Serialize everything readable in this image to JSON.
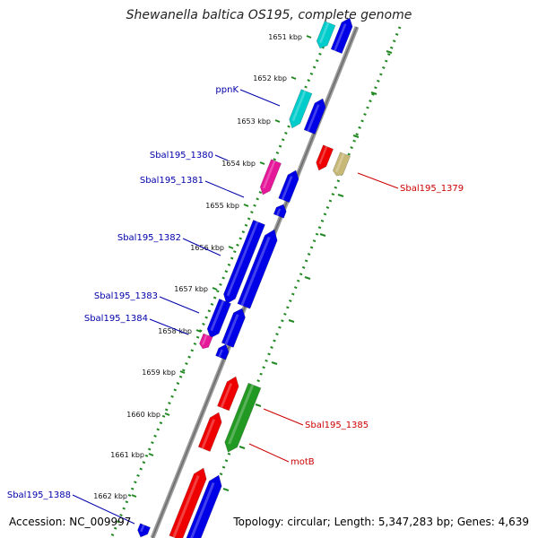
{
  "title": "Shewanella baltica OS195, complete genome",
  "footer": {
    "accession": "Accession: NC_009997",
    "topology": "Topology: circular; Length: 5,347,283 bp; Genes: 4,639"
  },
  "ticks": [
    "1651 kbp",
    "1652 kbp",
    "1653 kbp",
    "1654 kbp",
    "1655 kbp",
    "1656 kbp",
    "1657 kbp",
    "1658 kbp",
    "1659 kbp",
    "1660 kbp",
    "1661 kbp",
    "1662 kbp"
  ],
  "gene_labels": [
    {
      "id": "ppnk",
      "text": "ppnK",
      "color": "#0000aa"
    },
    {
      "id": "sbal1380",
      "text": "Sbal195_1380",
      "color": "#0000aa"
    },
    {
      "id": "sbal1381",
      "text": "Sbal195_1381",
      "color": "#0000aa"
    },
    {
      "id": "sbal1382",
      "text": "Sbal195_1382",
      "color": "#0000aa"
    },
    {
      "id": "sbal1383",
      "text": "Sbal195_1383",
      "color": "#0000aa"
    },
    {
      "id": "sbal1384",
      "text": "Sbal195_1384",
      "color": "#0000aa"
    },
    {
      "id": "sbal1388",
      "text": "Sbal195_1388",
      "color": "#0000aa"
    },
    {
      "id": "sbal1379",
      "text": "Sbal195_1379",
      "color": "#cc0000"
    },
    {
      "id": "sbal1385",
      "text": "Sbal195_1385",
      "color": "#cc0000"
    },
    {
      "id": "motb",
      "text": "motB",
      "color": "#cc0000"
    }
  ],
  "colors": {
    "blue": "#0000e6",
    "cyan": "#00cccc",
    "magenta": "#e6189a",
    "red": "#ee0000",
    "green": "#229922",
    "khaki": "#c8b878",
    "backbone": "#888888",
    "dots": "#339933"
  }
}
